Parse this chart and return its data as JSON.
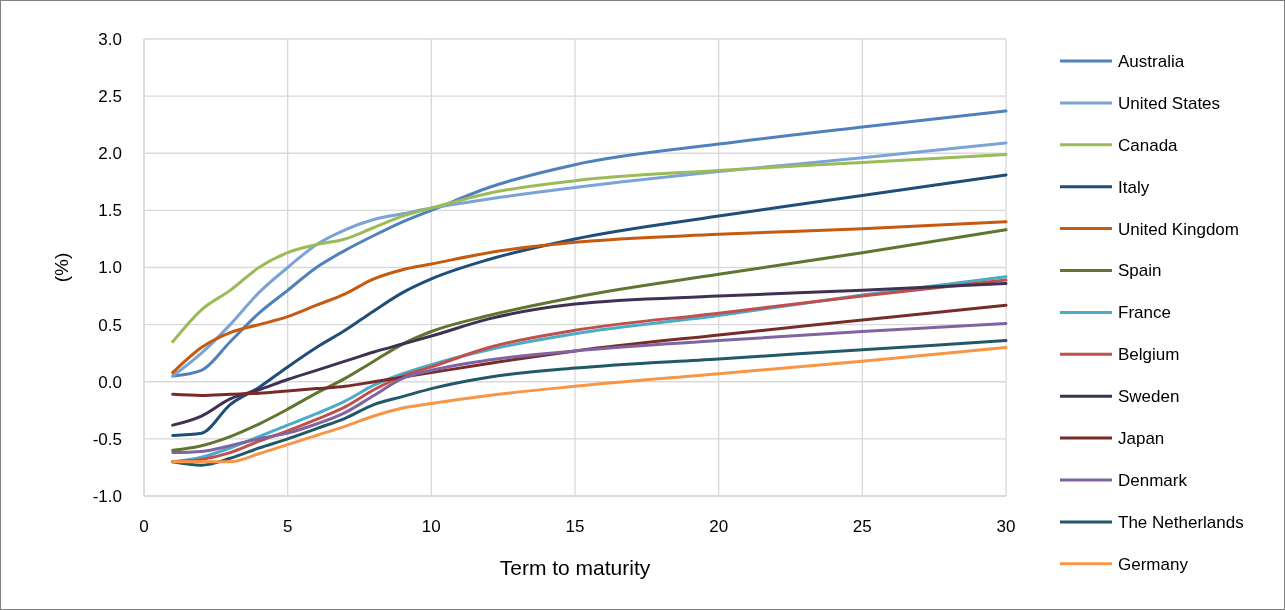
{
  "chart_data": {
    "type": "line",
    "xlabel": "Term to maturity",
    "ylabel": "(%)",
    "x": [
      1,
      2,
      3,
      4,
      5,
      6,
      7,
      8,
      9,
      10,
      12,
      15,
      20,
      25,
      30
    ],
    "xlim": [
      0,
      30
    ],
    "xticks": [
      0,
      5,
      10,
      15,
      20,
      25,
      30
    ],
    "ylim": [
      -1,
      3
    ],
    "yticks": [
      {
        "value": -1,
        "label": "-1.0"
      },
      {
        "value": -0.5,
        "label": "-0.5"
      },
      {
        "value": 0,
        "label": "0.0"
      },
      {
        "value": 0.5,
        "label": "0.5"
      },
      {
        "value": 1,
        "label": "1.0"
      },
      {
        "value": 1.5,
        "label": "1.5"
      },
      {
        "value": 2,
        "label": "2.0"
      },
      {
        "value": 2.5,
        "label": "2.5"
      },
      {
        "value": 3,
        "label": "3.0"
      }
    ],
    "grid": true,
    "legend": "right",
    "marker": "none",
    "line_style": "solid",
    "series": [
      {
        "name": "Australia",
        "color": "#4f81bd",
        "values": [
          0.05,
          0.1,
          0.35,
          0.6,
          0.8,
          1.0,
          1.15,
          1.28,
          1.4,
          1.5,
          1.7,
          1.9,
          2.08,
          2.23,
          2.37
        ]
      },
      {
        "name": "United States",
        "color": "#7aa3d6",
        "values": [
          0.05,
          0.25,
          0.5,
          0.78,
          1.0,
          1.2,
          1.33,
          1.42,
          1.47,
          1.52,
          1.6,
          1.7,
          1.84,
          1.96,
          2.09
        ]
      },
      {
        "name": "Canada",
        "color": "#9bbb59",
        "values": [
          0.35,
          0.63,
          0.8,
          1.0,
          1.13,
          1.2,
          1.25,
          1.35,
          1.45,
          1.52,
          1.65,
          1.76,
          1.85,
          1.92,
          1.99
        ]
      },
      {
        "name": "Italy",
        "color": "#1f4e79",
        "values": [
          -0.47,
          -0.45,
          -0.2,
          -0.05,
          0.13,
          0.3,
          0.45,
          0.62,
          0.78,
          0.9,
          1.07,
          1.25,
          1.45,
          1.63,
          1.81
        ]
      },
      {
        "name": "United Kingdom",
        "color": "#c55a11",
        "values": [
          0.08,
          0.3,
          0.43,
          0.5,
          0.57,
          0.67,
          0.77,
          0.9,
          0.98,
          1.03,
          1.13,
          1.22,
          1.29,
          1.34,
          1.4
        ]
      },
      {
        "name": "Spain",
        "color": "#5f7530",
        "values": [
          -0.6,
          -0.56,
          -0.48,
          -0.37,
          -0.24,
          -0.1,
          0.03,
          0.18,
          0.33,
          0.44,
          0.58,
          0.74,
          0.94,
          1.13,
          1.33
        ]
      },
      {
        "name": "France",
        "color": "#4bacc6",
        "values": [
          -0.7,
          -0.66,
          -0.58,
          -0.48,
          -0.38,
          -0.28,
          -0.17,
          -0.03,
          0.07,
          0.15,
          0.28,
          0.42,
          0.58,
          0.76,
          0.92
        ]
      },
      {
        "name": "Belgium",
        "color": "#c0504d",
        "values": [
          -0.7,
          -0.68,
          -0.62,
          -0.52,
          -0.43,
          -0.33,
          -0.22,
          -0.07,
          0.05,
          0.13,
          0.3,
          0.45,
          0.6,
          0.75,
          0.89
        ]
      },
      {
        "name": "Sweden",
        "color": "#403152",
        "values": [
          -0.38,
          -0.3,
          -0.15,
          -0.07,
          0.02,
          0.1,
          0.18,
          0.26,
          0.33,
          0.4,
          0.55,
          0.68,
          0.75,
          0.8,
          0.86
        ]
      },
      {
        "name": "Japan",
        "color": "#772c2a",
        "values": [
          -0.11,
          -0.12,
          -0.11,
          -0.1,
          -0.08,
          -0.06,
          -0.04,
          0,
          0.04,
          0.08,
          0.16,
          0.27,
          0.41,
          0.54,
          0.67
        ]
      },
      {
        "name": "Denmark",
        "color": "#8064a2",
        "values": [
          -0.62,
          -0.61,
          -0.56,
          -0.5,
          -0.45,
          -0.37,
          -0.27,
          -0.12,
          0.03,
          0.1,
          0.19,
          0.27,
          0.36,
          0.44,
          0.51
        ]
      },
      {
        "name": "The Netherlands",
        "color": "#215968",
        "values": [
          -0.7,
          -0.73,
          -0.67,
          -0.58,
          -0.5,
          -0.41,
          -0.32,
          -0.2,
          -0.13,
          -0.06,
          0.04,
          0.12,
          0.2,
          0.28,
          0.36
        ]
      },
      {
        "name": "Germany",
        "color": "#f79646",
        "values": [
          -0.7,
          -0.7,
          -0.7,
          -0.63,
          -0.55,
          -0.47,
          -0.39,
          -0.3,
          -0.23,
          -0.19,
          -0.12,
          -0.04,
          0.07,
          0.18,
          0.3
        ]
      }
    ]
  }
}
